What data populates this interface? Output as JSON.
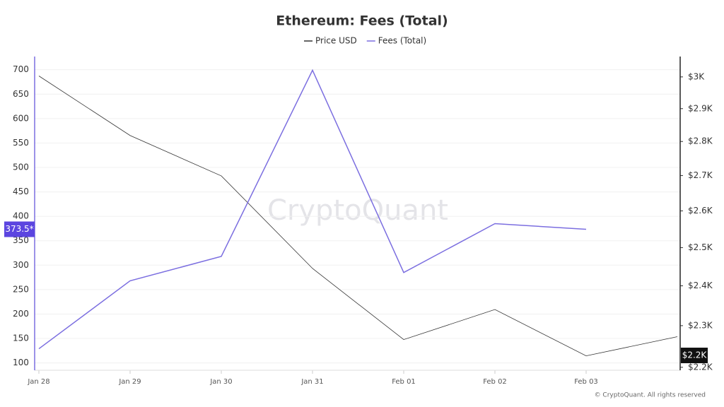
{
  "chart_data": {
    "type": "line",
    "title": "Ethereum: Fees (Total)",
    "watermark": "CryptoQuant",
    "copyright": "© CryptoQuant. All rights reserved",
    "categories": [
      "Jan 28",
      "Jan 29",
      "Jan 30",
      "Jan 31",
      "Feb 01",
      "Feb 02",
      "Feb 03",
      null
    ],
    "series": [
      {
        "name": "Price USD",
        "color": "#333333",
        "axis": "y2",
        "values": [
          3003,
          2818,
          2699,
          2445,
          2266,
          2340,
          2227,
          2273
        ]
      },
      {
        "name": "Fees (Total)",
        "color": "#7b6ee0",
        "values": [
          129,
          268,
          318,
          699,
          285,
          385,
          373.5,
          null
        ]
      }
    ],
    "ylim": [
      85,
      727
    ],
    "yticks": [
      100,
      150,
      200,
      250,
      300,
      350,
      400,
      450,
      500,
      550,
      600,
      650,
      700
    ],
    "y2lim": [
      2193,
      3066
    ],
    "y2scale": "log",
    "y2ticks": [
      {
        "value": 2200,
        "label": "$2.2K"
      },
      {
        "value": 2300,
        "label": "$2.3K"
      },
      {
        "value": 2400,
        "label": "$2.4K"
      },
      {
        "value": 2500,
        "label": "$2.5K"
      },
      {
        "value": 2600,
        "label": "$2.6K"
      },
      {
        "value": 2700,
        "label": "$2.7K"
      },
      {
        "value": 2800,
        "label": "$2.8K"
      },
      {
        "value": 2900,
        "label": "$2.9K"
      },
      {
        "value": 3000,
        "label": "$3K"
      }
    ],
    "markers": [
      {
        "axis": "y",
        "value": 373.5,
        "label": "373.5*",
        "color": "#5b45e0"
      },
      {
        "axis": "y2",
        "value": 2228,
        "label": "$2.2K",
        "color": "#111111"
      }
    ],
    "grid": true,
    "legend": "top"
  }
}
